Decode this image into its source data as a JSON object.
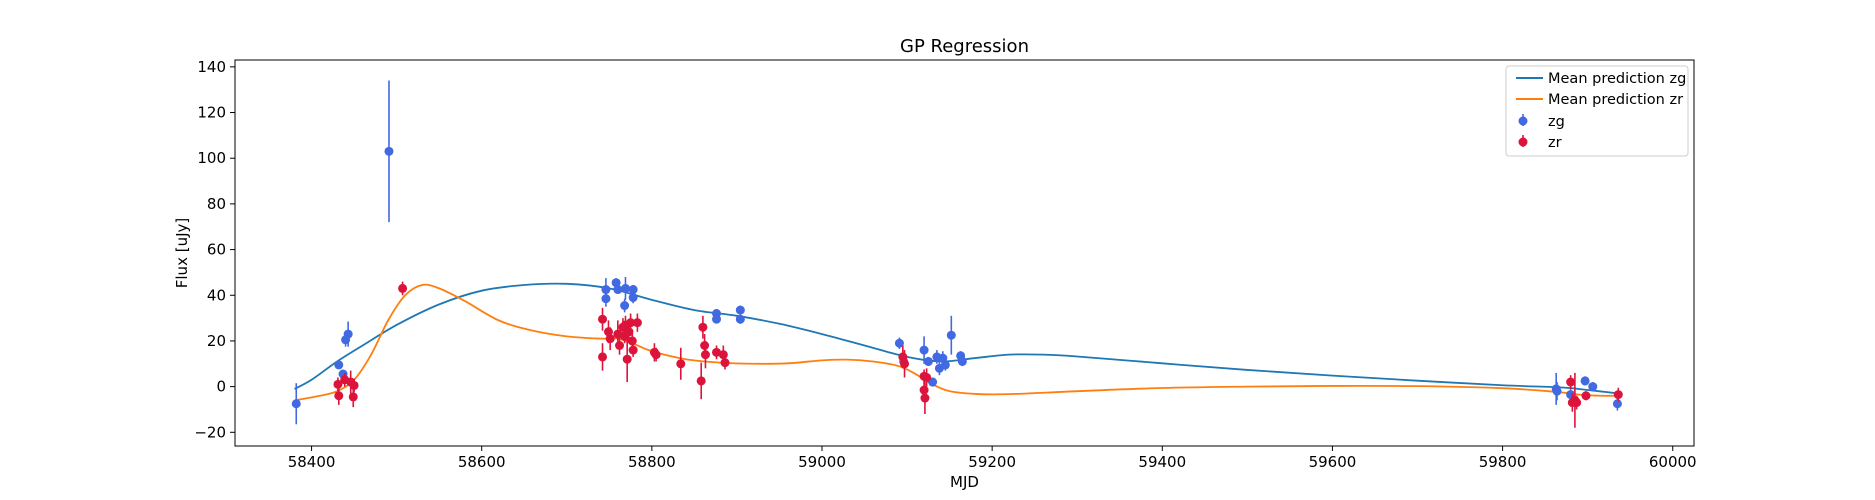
{
  "chart_data": {
    "type": "scatter",
    "title": "GP Regression",
    "xlabel": "MJD",
    "ylabel": "Flux [uJy]",
    "xlim": [
      58310,
      60025
    ],
    "ylim": [
      -26,
      143
    ],
    "xticks": [
      58400,
      58600,
      58800,
      59000,
      59200,
      59400,
      59600,
      59800,
      60000
    ],
    "yticks": [
      -20,
      0,
      20,
      40,
      60,
      80,
      100,
      120,
      140
    ],
    "grid": false,
    "legend_position": "top-right",
    "lines": [
      {
        "name": "Mean prediction zg",
        "color": "#1f77b4",
        "x": [
          58380,
          58400,
          58430,
          58460,
          58500,
          58550,
          58600,
          58650,
          58700,
          58750,
          58800,
          58850,
          58900,
          58950,
          59000,
          59050,
          59100,
          59140,
          59180,
          59220,
          59260,
          59300,
          59400,
          59500,
          59600,
          59700,
          59800,
          59870,
          59900,
          59937
        ],
        "y": [
          -1,
          3,
          11,
          18,
          27,
          36,
          42,
          44.5,
          45,
          43,
          38,
          33.5,
          31,
          27.5,
          23,
          18,
          13,
          11,
          12.5,
          14,
          14,
          13.2,
          10.2,
          7.3,
          4.8,
          2.6,
          0.6,
          -0.4,
          -1.5,
          -3
        ]
      },
      {
        "name": "Mean prediction zr",
        "color": "#ff7f0e",
        "x": [
          58380,
          58410,
          58430,
          58450,
          58470,
          58490,
          58510,
          58530,
          58550,
          58580,
          58620,
          58660,
          58700,
          58740,
          58760,
          58780,
          58800,
          58840,
          58880,
          58920,
          58960,
          59000,
          59030,
          59060,
          59090,
          59110,
          59130,
          59150,
          59180,
          59220,
          59300,
          59400,
          59500,
          59600,
          59700,
          59800,
          59860,
          59890,
          59915,
          59937
        ],
        "y": [
          -6,
          -4,
          -2,
          3,
          14,
          29,
          40,
          44.5,
          43,
          37.5,
          29,
          24.5,
          22,
          21,
          21,
          18.5,
          15.5,
          12,
          10.5,
          10,
          10.2,
          11.5,
          11.8,
          11,
          9,
          5.5,
          1,
          -2,
          -3.2,
          -3.3,
          -2,
          -0.6,
          0,
          0.3,
          0.2,
          -0.7,
          -2.2,
          -3.5,
          -4,
          -4
        ]
      }
    ],
    "series": [
      {
        "name": "zg",
        "color": "#4169e1",
        "points": [
          {
            "x": 58382,
            "y": -7.5,
            "err": 9
          },
          {
            "x": 58432,
            "y": 9.5,
            "err": 1.5
          },
          {
            "x": 58437,
            "y": 5.5,
            "err": 2
          },
          {
            "x": 58440,
            "y": 20.5,
            "err": 3
          },
          {
            "x": 58443,
            "y": 23,
            "err": 5.5
          },
          {
            "x": 58491,
            "y": 103,
            "err": 31
          },
          {
            "x": 58746,
            "y": 38.5,
            "err": 3.5
          },
          {
            "x": 58746,
            "y": 42.5,
            "err": 5
          },
          {
            "x": 58758,
            "y": 45.5,
            "err": 2
          },
          {
            "x": 58760,
            "y": 42.5,
            "err": 1.5
          },
          {
            "x": 58768,
            "y": 35.5,
            "err": 3
          },
          {
            "x": 58769,
            "y": 43,
            "err": 5
          },
          {
            "x": 58778,
            "y": 42.5,
            "err": 2
          },
          {
            "x": 58778,
            "y": 39,
            "err": 2.5
          },
          {
            "x": 58876,
            "y": 32,
            "err": 2
          },
          {
            "x": 58876,
            "y": 29.5,
            "err": 1.5
          },
          {
            "x": 58904,
            "y": 33.5,
            "err": 2
          },
          {
            "x": 58904,
            "y": 29.5,
            "err": 2
          },
          {
            "x": 59091,
            "y": 19,
            "err": 2.5
          },
          {
            "x": 59096,
            "y": 11,
            "err": 2
          },
          {
            "x": 59120,
            "y": 16,
            "err": 6
          },
          {
            "x": 59125,
            "y": 11,
            "err": 2
          },
          {
            "x": 59130,
            "y": 2,
            "err": 2
          },
          {
            "x": 59135,
            "y": 13,
            "err": 3
          },
          {
            "x": 59138,
            "y": 8,
            "err": 3
          },
          {
            "x": 59142,
            "y": 12.5,
            "err": 3
          },
          {
            "x": 59145,
            "y": 9.5,
            "err": 2.5
          },
          {
            "x": 59152,
            "y": 22.5,
            "err": 8.5
          },
          {
            "x": 59163,
            "y": 13.5,
            "err": 2
          },
          {
            "x": 59165,
            "y": 11,
            "err": 2
          },
          {
            "x": 59863,
            "y": -1,
            "err": 7
          },
          {
            "x": 59864,
            "y": -2,
            "err": 4
          },
          {
            "x": 59880,
            "y": -3.5,
            "err": 3
          },
          {
            "x": 59897,
            "y": 2.5,
            "err": 2
          },
          {
            "x": 59906,
            "y": 0,
            "err": 2
          },
          {
            "x": 59935,
            "y": -7.5,
            "err": 3
          }
        ]
      },
      {
        "name": "zr",
        "color": "#dc143c",
        "points": [
          {
            "x": 58431,
            "y": 1,
            "err": 3
          },
          {
            "x": 58432,
            "y": -4,
            "err": 4
          },
          {
            "x": 58439,
            "y": 3,
            "err": 3
          },
          {
            "x": 58446,
            "y": 2,
            "err": 5
          },
          {
            "x": 58449,
            "y": -4.5,
            "err": 4.5
          },
          {
            "x": 58450,
            "y": 0.5,
            "err": 3
          },
          {
            "x": 58507,
            "y": 43,
            "err": 3
          },
          {
            "x": 58742,
            "y": 29.5,
            "err": 5
          },
          {
            "x": 58742,
            "y": 13,
            "err": 6
          },
          {
            "x": 58749,
            "y": 24,
            "err": 5
          },
          {
            "x": 58751,
            "y": 21,
            "err": 5
          },
          {
            "x": 58760,
            "y": 23,
            "err": 6
          },
          {
            "x": 58762,
            "y": 18,
            "err": 4
          },
          {
            "x": 58766,
            "y": 26,
            "err": 4
          },
          {
            "x": 58768,
            "y": 22,
            "err": 3
          },
          {
            "x": 58769,
            "y": 27,
            "err": 4
          },
          {
            "x": 58771,
            "y": 12,
            "err": 10
          },
          {
            "x": 58773,
            "y": 24,
            "err": 5
          },
          {
            "x": 58775,
            "y": 28,
            "err": 4
          },
          {
            "x": 58777,
            "y": 20,
            "err": 5
          },
          {
            "x": 58778,
            "y": 16,
            "err": 3
          },
          {
            "x": 58783,
            "y": 28,
            "err": 4
          },
          {
            "x": 58803,
            "y": 15,
            "err": 4
          },
          {
            "x": 58805,
            "y": 14,
            "err": 3
          },
          {
            "x": 58834,
            "y": 10,
            "err": 7
          },
          {
            "x": 58858,
            "y": 2.5,
            "err": 8
          },
          {
            "x": 58860,
            "y": 26,
            "err": 5
          },
          {
            "x": 58862,
            "y": 18,
            "err": 5
          },
          {
            "x": 58863,
            "y": 14,
            "err": 6
          },
          {
            "x": 58876,
            "y": 15,
            "err": 3
          },
          {
            "x": 58884,
            "y": 14,
            "err": 4
          },
          {
            "x": 58886,
            "y": 10.5,
            "err": 3
          },
          {
            "x": 59095,
            "y": 13,
            "err": 5
          },
          {
            "x": 59097,
            "y": 10,
            "err": 6
          },
          {
            "x": 59120,
            "y": 4.5,
            "err": 3
          },
          {
            "x": 59120,
            "y": -1.5,
            "err": 4
          },
          {
            "x": 59121,
            "y": -5,
            "err": 7
          },
          {
            "x": 59123,
            "y": 4,
            "err": 4
          },
          {
            "x": 59880,
            "y": 2,
            "err": 3
          },
          {
            "x": 59882,
            "y": -7,
            "err": 4
          },
          {
            "x": 59885,
            "y": -6,
            "err": 12
          },
          {
            "x": 59887,
            "y": -7,
            "err": 3
          },
          {
            "x": 59898,
            "y": -4,
            "err": 2
          },
          {
            "x": 59936,
            "y": -3.5,
            "err": 3
          }
        ]
      }
    ]
  }
}
